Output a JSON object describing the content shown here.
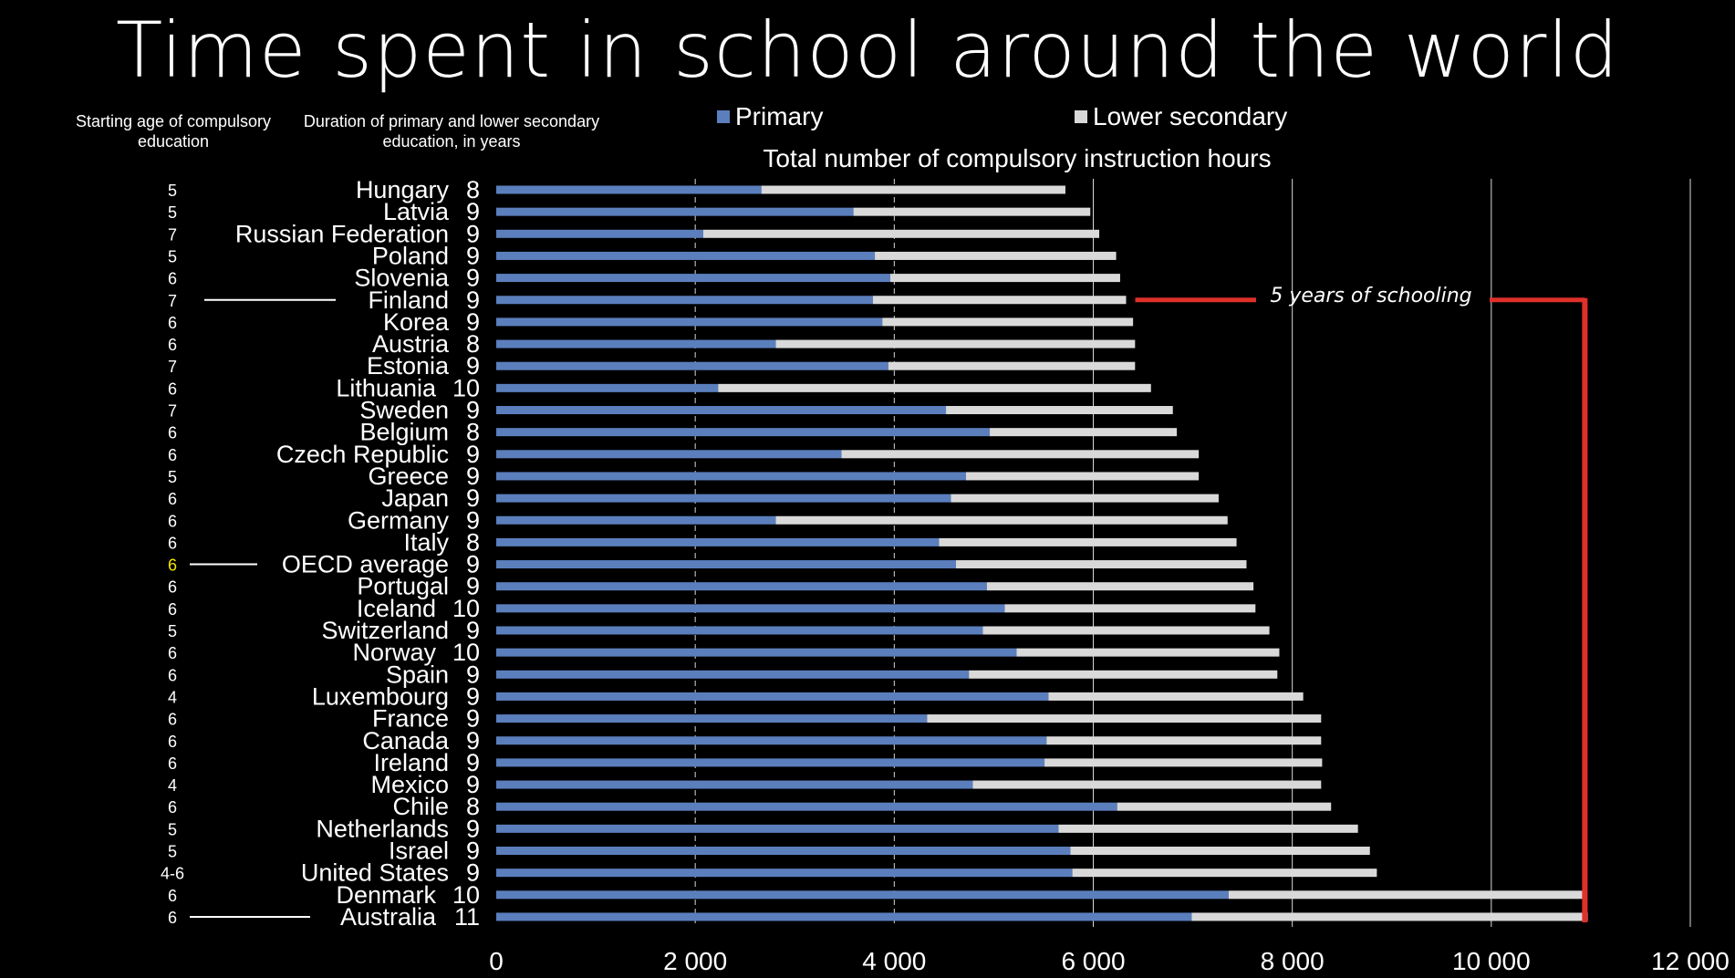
{
  "title": "Time spent in school around the world",
  "header": {
    "col_age": "Starting age of compulsory education",
    "col_duration": "Duration of primary and lower secondary education, in years"
  },
  "colors": {
    "primary": "#5b7fbd",
    "lower_secondary": "#d9d9d9",
    "bracket": "#e0302a",
    "highlight": "#f2e600"
  },
  "annotation": "5 years of schooling",
  "chart_data": {
    "type": "bar",
    "orientation": "horizontal",
    "stacked": true,
    "title": "Total number of compulsory instruction hours",
    "xlim": [
      0,
      12000
    ],
    "xticks": [
      "0",
      "2 000",
      "4 000",
      "6 000",
      "8 000",
      "10 000",
      "12 000"
    ],
    "grid": "vertical",
    "legend_position": "top",
    "categories": [
      "Hungary",
      "Latvia",
      "Russian Federation",
      "Poland",
      "Slovenia",
      "Finland",
      "Korea",
      "Austria",
      "Estonia",
      "Lithuania",
      "Sweden",
      "Belgium",
      "Czech Republic",
      "Greece",
      "Japan",
      "Germany",
      "Italy",
      "OECD average",
      "Portugal",
      "Iceland",
      "Switzerland",
      "Norway",
      "Spain",
      "Luxembourg",
      "France",
      "Canada",
      "Ireland",
      "Mexico",
      "Chile",
      "Netherlands",
      "Israel",
      "United States",
      "Denmark",
      "Australia"
    ],
    "starting_age": [
      "5",
      "5",
      "7",
      "5",
      "6",
      "7",
      "6",
      "6",
      "7",
      "6",
      "7",
      "6",
      "6",
      "5",
      "6",
      "6",
      "6",
      "6",
      "6",
      "6",
      "5",
      "6",
      "6",
      "4",
      "6",
      "6",
      "6",
      "4",
      "6",
      "5",
      "5",
      "4-6",
      "6",
      "6"
    ],
    "duration_years": [
      "8",
      "9",
      "9",
      "9",
      "9",
      "9",
      "9",
      "8",
      "9",
      "10",
      "9",
      "8",
      "9",
      "9",
      "9",
      "9",
      "8",
      "9",
      "9",
      "10",
      "9",
      "10",
      "9",
      "9",
      "9",
      "9",
      "9",
      "9",
      "8",
      "9",
      "9",
      "9",
      "10",
      "11"
    ],
    "series": [
      {
        "name": "Primary",
        "values": [
          2665,
          3590,
          2080,
          3805,
          3960,
          3785,
          3880,
          2810,
          3940,
          2230,
          4520,
          4960,
          3470,
          4720,
          4570,
          2810,
          4450,
          4620,
          4930,
          5110,
          4890,
          5230,
          4750,
          5550,
          4330,
          5530,
          5510,
          4790,
          6240,
          5650,
          5770,
          5790,
          7360,
          6990
        ]
      },
      {
        "name": "Lower secondary",
        "values": [
          3055,
          2380,
          3980,
          2425,
          2310,
          2545,
          2520,
          3610,
          2480,
          4350,
          2280,
          1880,
          3590,
          2340,
          2690,
          4540,
          2990,
          2920,
          2680,
          2520,
          2880,
          2640,
          3100,
          2560,
          3960,
          2760,
          2790,
          3500,
          2150,
          3010,
          3010,
          3060,
          3600,
          3980
        ]
      }
    ]
  }
}
